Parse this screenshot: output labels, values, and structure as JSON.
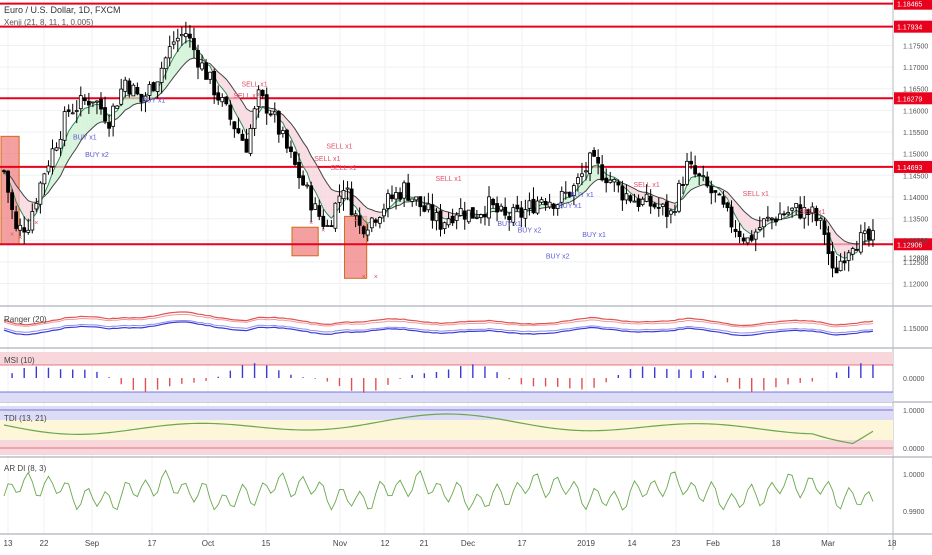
{
  "header": {
    "symbol_title": "Euro / U.S. Dollar, 1D, FXCM",
    "overlay_label": "Xenji (21, 8, 11, 1, 0.005)"
  },
  "panes": {
    "ranger": {
      "label": "Ranger (20)",
      "tick": "1.15000"
    },
    "msi": {
      "label": "MSI (10)",
      "tick": "0.0000"
    },
    "tdi": {
      "label": "TDI (13, 21)",
      "ticks": [
        "1.0000",
        "0.0000"
      ]
    },
    "ardi": {
      "label": "AR DI (8, 3)",
      "ticks": [
        "1.0000",
        "0.9900"
      ]
    }
  },
  "chart_data": {
    "type": "candlestick",
    "title": "Euro / U.S. Dollar, 1D, FXCM",
    "price_range": [
      1.1148,
      1.1855
    ],
    "price_ticks": [
      "1.17500",
      "1.17000",
      "1.16500",
      "1.16000",
      "1.15500",
      "1.15000",
      "1.14500",
      "1.14000",
      "1.13500",
      "1.13000",
      "1.12500",
      "1.12000"
    ],
    "levels": [
      {
        "value": 1.18465,
        "label": "1.18465"
      },
      {
        "value": 1.17934,
        "label": "1.17934"
      },
      {
        "value": 1.16279,
        "label": "1.16279"
      },
      {
        "value": 1.14693,
        "label": "1.14693"
      },
      {
        "value": 1.12906,
        "label": "1.12906"
      }
    ],
    "current_price": {
      "value": 1.12808,
      "label": "1.12808"
    },
    "x_labels": [
      "13",
      "22",
      "Sep",
      "17",
      "Oct",
      "15",
      "Nov",
      "12",
      "21",
      "Dec",
      "17",
      "2019",
      "14",
      "23",
      "Feb",
      "18",
      "Mar",
      "18"
    ],
    "highlight_boxes": [
      {
        "from_bar": 0,
        "to_bar": 3,
        "high": 1.154,
        "low": 1.129
      },
      {
        "from_bar": 72,
        "to_bar": 77,
        "high": 1.133,
        "low": 1.1264
      },
      {
        "from_bar": 85,
        "to_bar": 89,
        "high": 1.1355,
        "low": 1.1212
      }
    ],
    "signals": [
      {
        "text": "BUY x1",
        "bar": 20,
        "price": 1.1533,
        "color": "#5b5bd6"
      },
      {
        "text": "BUY x2",
        "bar": 23,
        "price": 1.1492,
        "color": "#5b5bd6"
      },
      {
        "text": "BUY x1",
        "bar": 37,
        "price": 1.1618,
        "color": "#5b5bd6"
      },
      {
        "text": "SELL x1",
        "bar": 62,
        "price": 1.1655,
        "color": "#e0506b"
      },
      {
        "text": "SELL x2",
        "bar": 60,
        "price": 1.1628,
        "color": "#e0506b"
      },
      {
        "text": "SELL x1",
        "bar": 83,
        "price": 1.1512,
        "color": "#e0506b"
      },
      {
        "text": "SELL x1",
        "bar": 80,
        "price": 1.1483,
        "color": "#e0506b"
      },
      {
        "text": "SELL x1",
        "bar": 84,
        "price": 1.1462,
        "color": "#e0506b"
      },
      {
        "text": "SELL x1",
        "bar": 110,
        "price": 1.1437,
        "color": "#e0506b"
      },
      {
        "text": "BUY x1",
        "bar": 125,
        "price": 1.1333,
        "color": "#5b5bd6"
      },
      {
        "text": "BUY x2",
        "bar": 130,
        "price": 1.1318,
        "color": "#5b5bd6"
      },
      {
        "text": "BUY x1",
        "bar": 140,
        "price": 1.1375,
        "color": "#5b5bd6"
      },
      {
        "text": "BUY x1",
        "bar": 146,
        "price": 1.1307,
        "color": "#5b5bd6"
      },
      {
        "text": "BUY x2",
        "bar": 137,
        "price": 1.1258,
        "color": "#5b5bd6"
      },
      {
        "text": "BUY x1",
        "bar": 143,
        "price": 1.14,
        "color": "#5b5bd6"
      },
      {
        "text": "SELL x1",
        "bar": 159,
        "price": 1.1423,
        "color": "#e0506b"
      },
      {
        "text": "SELL x1",
        "bar": 186,
        "price": 1.1402,
        "color": "#e0506b"
      },
      {
        "text": "SELL x1",
        "bar": 200,
        "price": 1.136,
        "color": "#e0506b"
      }
    ]
  }
}
